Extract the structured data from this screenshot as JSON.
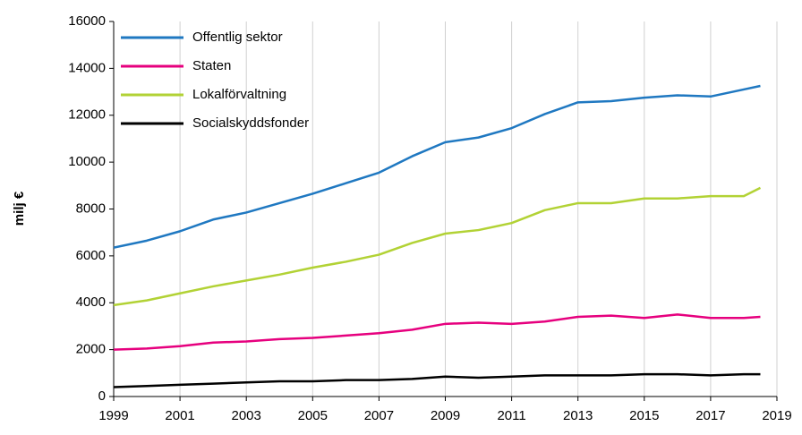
{
  "chart_data": {
    "type": "line",
    "ylabel": "milj €",
    "x": [
      1999,
      2000,
      2001,
      2002,
      2003,
      2004,
      2005,
      2006,
      2007,
      2008,
      2009,
      2010,
      2011,
      2012,
      2013,
      2014,
      2015,
      2016,
      2017,
      2018,
      2018.5
    ],
    "series": [
      {
        "name": "Offentlig sektor",
        "color": "#1f78c1",
        "values": [
          6350,
          6650,
          7050,
          7550,
          7850,
          8250,
          8650,
          9100,
          9550,
          10250,
          10850,
          11050,
          11450,
          12050,
          12550,
          12600,
          12750,
          12850,
          12800,
          13100,
          13250
        ]
      },
      {
        "name": "Staten",
        "color": "#e6007e",
        "values": [
          2000,
          2050,
          2150,
          2300,
          2350,
          2450,
          2500,
          2600,
          2700,
          2850,
          3100,
          3150,
          3100,
          3200,
          3400,
          3450,
          3350,
          3500,
          3350,
          3350,
          3400
        ]
      },
      {
        "name": "Lokalförvaltning",
        "color": "#b2d235",
        "values": [
          3900,
          4100,
          4400,
          4700,
          4950,
          5200,
          5500,
          5750,
          6050,
          6550,
          6950,
          7100,
          7400,
          7950,
          8250,
          8250,
          8450,
          8450,
          8550,
          8550,
          8900
        ]
      },
      {
        "name": "Socialskyddsfonder",
        "color": "#000000",
        "values": [
          400,
          450,
          500,
          550,
          600,
          650,
          650,
          700,
          700,
          750,
          850,
          800,
          850,
          900,
          900,
          900,
          950,
          950,
          900,
          950,
          950
        ]
      }
    ],
    "xlim": [
      1999,
      2019
    ],
    "xticks": [
      1999,
      2001,
      2003,
      2005,
      2007,
      2009,
      2011,
      2013,
      2015,
      2017,
      2019
    ],
    "ylim": [
      0,
      16000
    ],
    "yticks": [
      0,
      2000,
      4000,
      6000,
      8000,
      10000,
      12000,
      14000,
      16000
    ],
    "grid": "x",
    "legend": "upper left"
  }
}
